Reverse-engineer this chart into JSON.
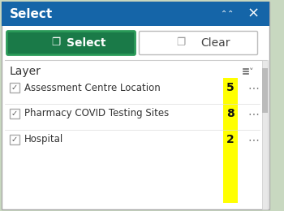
{
  "title": "Select",
  "title_bg": "#1565a8",
  "title_text_color": "#ffffff",
  "title_fontsize": 11,
  "panel_bg": "#ffffff",
  "outer_bg": "#c8d8c0",
  "select_btn_color": "#1a7a48",
  "select_btn_border": "#2a9a58",
  "select_btn_text": "Select",
  "clear_btn_color": "#ffffff",
  "clear_btn_border": "#bbbbbb",
  "clear_btn_text": "Clear",
  "layer_header": "Layer",
  "layers": [
    {
      "name": "Assessment Centre Location",
      "count": "5"
    },
    {
      "name": "Pharmacy COVID Testing Sites",
      "count": "8"
    },
    {
      "name": "Hospital",
      "count": "2"
    }
  ],
  "highlight_color": "#ffff00",
  "check_color": "#555555",
  "dots_color": "#777777",
  "layer_text_color": "#333333",
  "scrollbar_track": "#e8e8e8",
  "scrollbar_thumb": "#bbbbbb",
  "separator_color": "#dddddd",
  "header_sep_color": "#cccccc"
}
